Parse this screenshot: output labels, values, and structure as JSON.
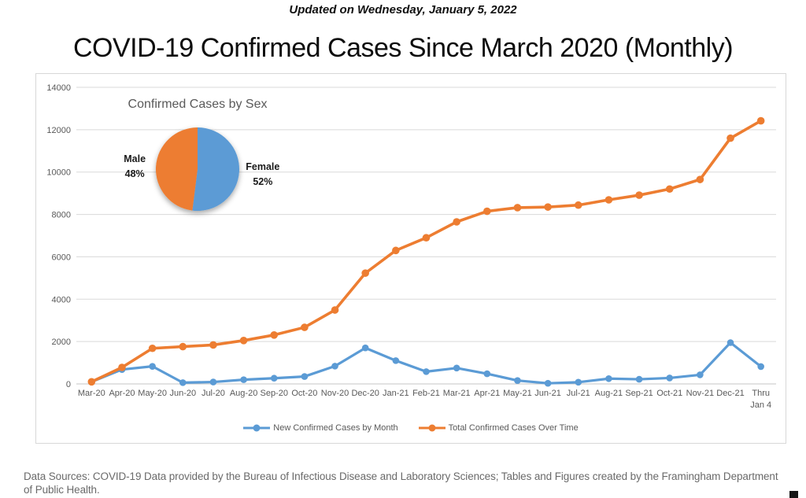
{
  "page": {
    "updated_line": "Updated on Wednesday, January 5, 2022",
    "title": "COVID-19 Confirmed Cases Since March 2020 (Monthly)",
    "footer_line1": "Data Sources: COVID-19 Data provided by the Bureau of Infectious Disease and Laboratory Sciences; Tables and Figures created by the Framingham Department",
    "footer_line2": "of Public Health."
  },
  "colors": {
    "blue": "#5B9BD5",
    "orange": "#ED7D31",
    "grid": "#D9D9D9",
    "axis_zero_line": "#C6C6C6",
    "axis_text": "#595959",
    "pie_label_text": "#1a1a1a"
  },
  "chart_data": [
    {
      "type": "line",
      "title": "COVID-19 Confirmed Cases Since March 2020 (Monthly)",
      "categories": [
        "Mar-20",
        "Apr-20",
        "May-20",
        "Jun-20",
        "Jul-20",
        "Aug-20",
        "Sep-20",
        "Oct-20",
        "Nov-20",
        "Dec-20",
        "Jan-21",
        "Feb-21",
        "Mar-21",
        "Apr-21",
        "May-21",
        "Jun-21",
        "Jul-21",
        "Aug-21",
        "Sep-21",
        "Oct-21",
        "Nov-21",
        "Dec-21",
        "Thru Jan 4"
      ],
      "series": [
        {
          "name": "New Confirmed Cases by Month",
          "color": "#5B9BD5",
          "values": [
            100,
            680,
            830,
            60,
            90,
            200,
            270,
            350,
            840,
            1700,
            1100,
            580,
            750,
            480,
            160,
            30,
            80,
            250,
            220,
            280,
            430,
            1950,
            820
          ]
        },
        {
          "name": "Total Confirmed Cases Over Time",
          "color": "#ED7D31",
          "values": [
            100,
            780,
            1680,
            1760,
            1840,
            2050,
            2310,
            2670,
            3490,
            5230,
            6300,
            6900,
            7650,
            8150,
            8320,
            8350,
            8440,
            8690,
            8910,
            9200,
            9650,
            11600,
            12420
          ]
        }
      ],
      "ylim": [
        0,
        14000
      ],
      "ytick_step": 2000,
      "grid": true,
      "legend_position": "bottom"
    },
    {
      "type": "pie",
      "title": "Confirmed Cases by Sex",
      "labels": [
        "Female",
        "Male"
      ],
      "values": [
        52,
        48
      ],
      "value_labels": [
        "52%",
        "48%"
      ],
      "colors": [
        "#5B9BD5",
        "#ED7D31"
      ]
    }
  ]
}
